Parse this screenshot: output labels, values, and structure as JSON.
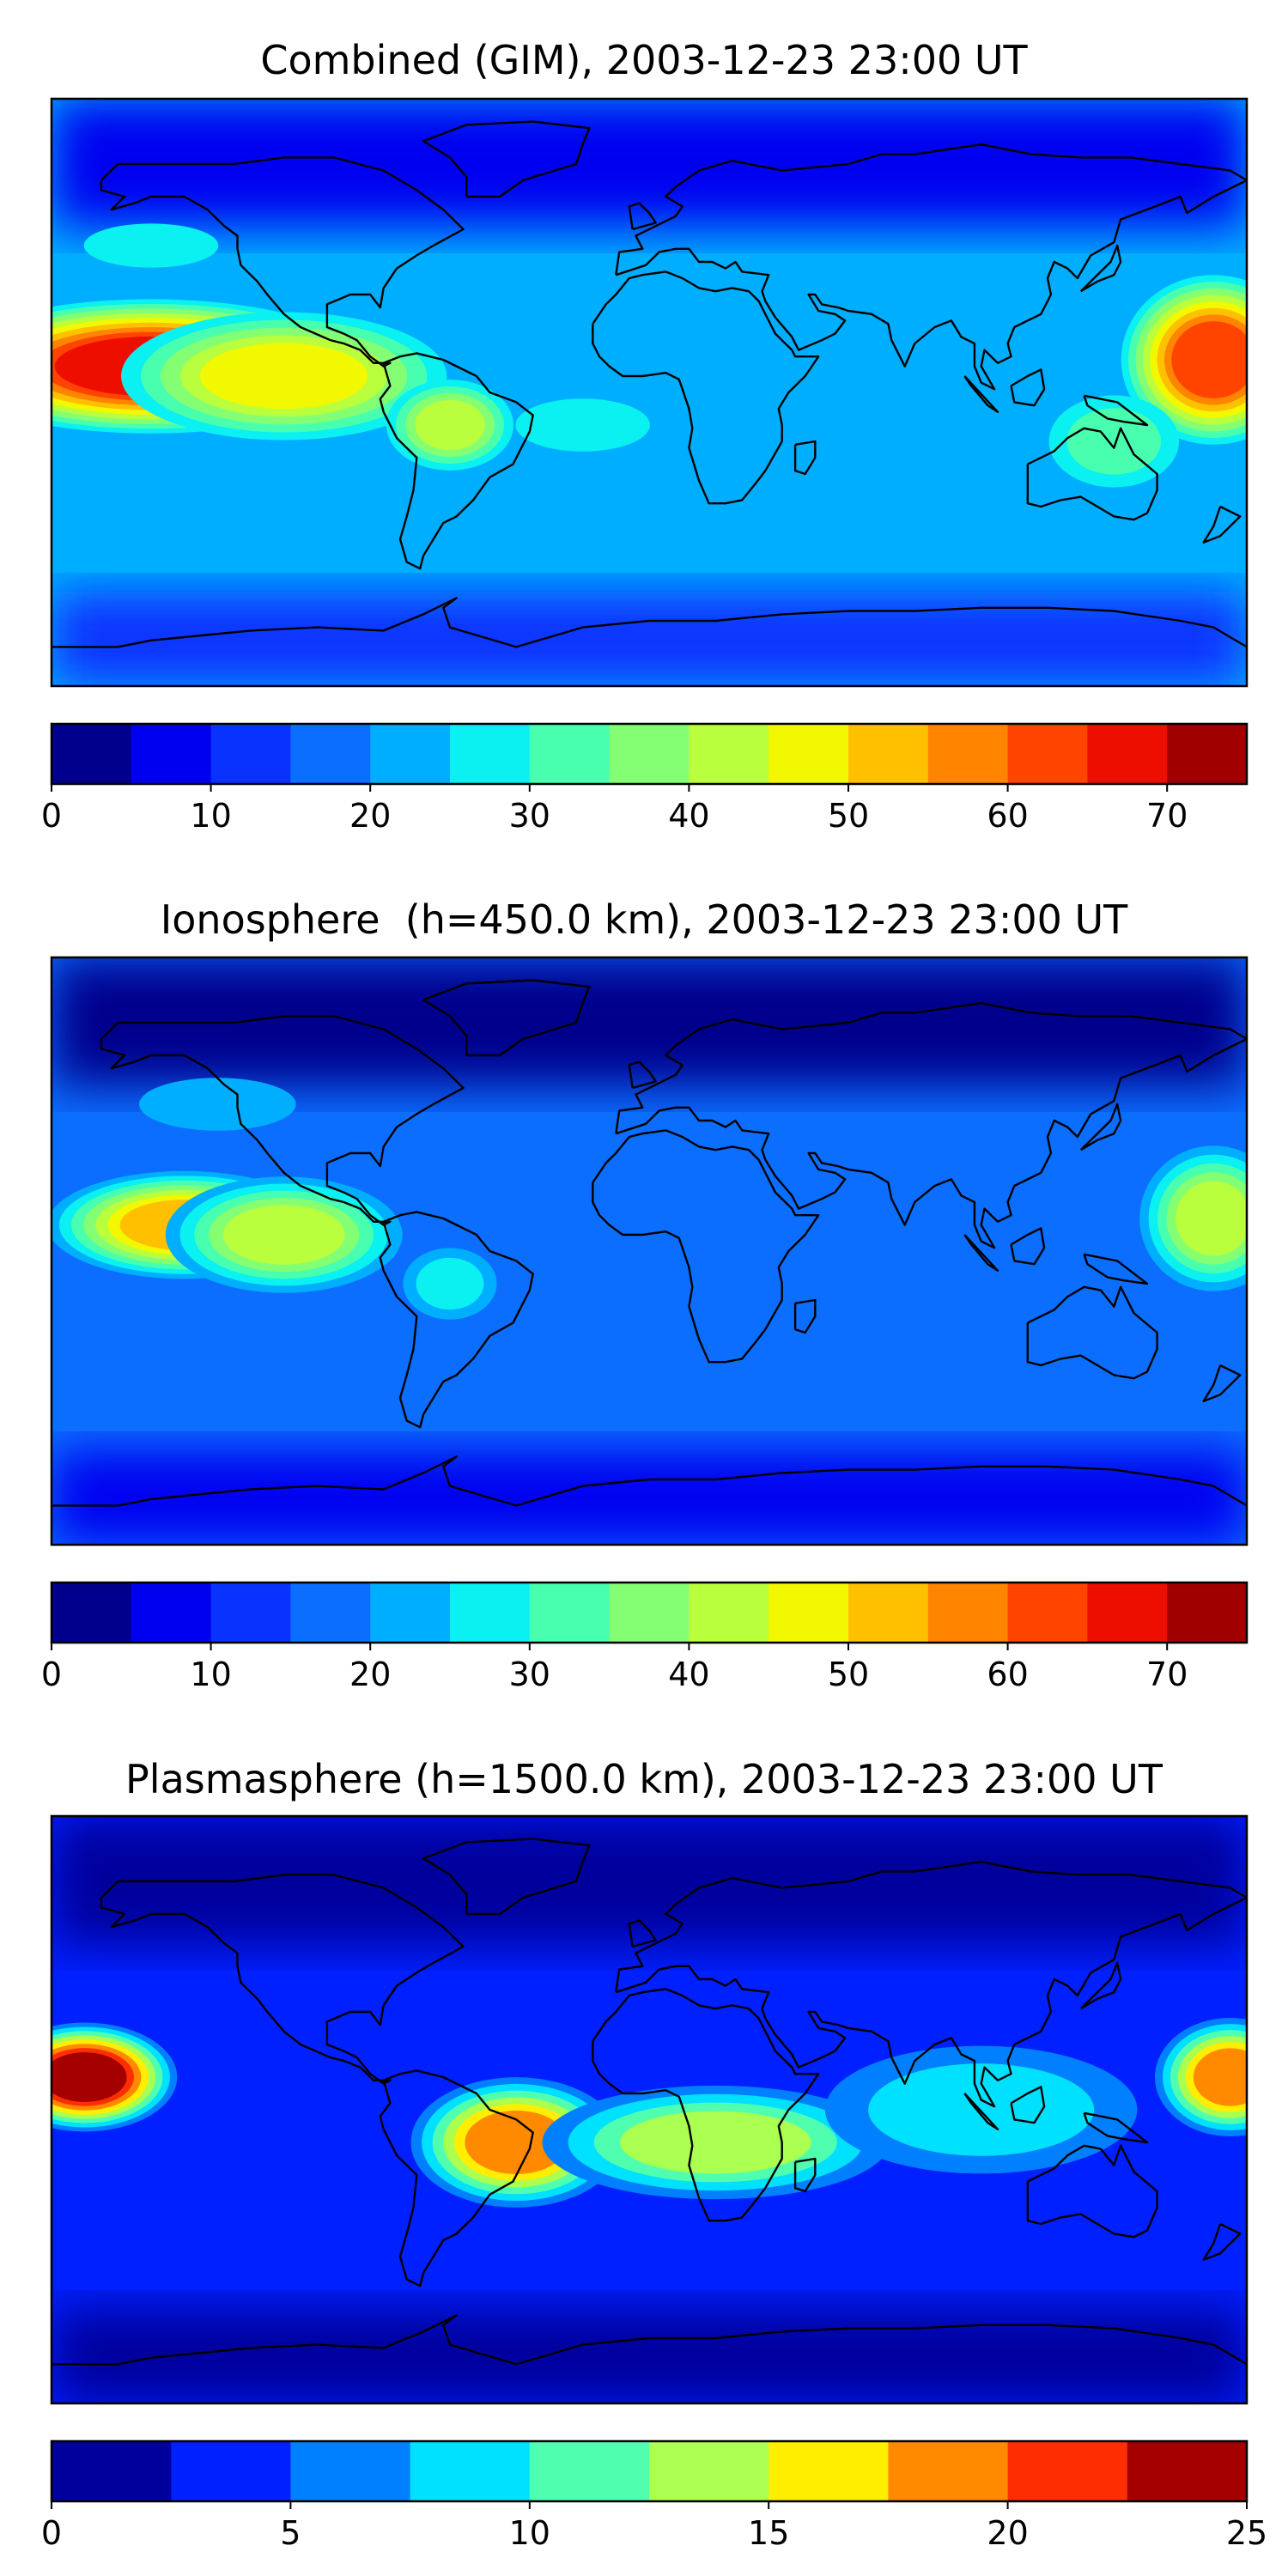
{
  "figure": {
    "panels": [
      {
        "title": "Combined (GIM), 2003-12-23 23:00 UT",
        "colorbar": {
          "min": 0,
          "max": 75,
          "step": 5,
          "ticks": [
            0,
            10,
            20,
            30,
            40,
            50,
            60,
            70
          ],
          "tick_labels": [
            "0",
            "10",
            "20",
            "30",
            "40",
            "50",
            "60",
            "70"
          ],
          "colors": [
            "#00008c",
            "#0000f0",
            "#0a32ff",
            "#0c6eff",
            "#00aeff",
            "#0bf0f0",
            "#48ffb0",
            "#84ff74",
            "#b9ff3d",
            "#f2f800",
            "#ffc000",
            "#ff8400",
            "#ff4400",
            "#ee0e00",
            "#a10000"
          ]
        },
        "blobs": [
          {
            "lon": -150,
            "lat": 8,
            "w": 70,
            "h": 22,
            "level": 0.92
          },
          {
            "lon": -110,
            "lat": 5,
            "w": 55,
            "h": 22,
            "level": 0.65
          },
          {
            "lon": -60,
            "lat": -10,
            "w": 22,
            "h": 16,
            "level": 0.55
          },
          {
            "lon": 170,
            "lat": 10,
            "w": 30,
            "h": 28,
            "level": 0.85
          },
          {
            "lon": 140,
            "lat": -15,
            "w": 25,
            "h": 18,
            "level": 0.42
          },
          {
            "lon": -150,
            "lat": 45,
            "w": 30,
            "h": 10,
            "level": 0.35
          },
          {
            "lon": -20,
            "lat": -10,
            "w": 30,
            "h": 12,
            "level": 0.38
          }
        ],
        "background_level": 0.3
      },
      {
        "title": "Ionosphere  (h=450.0 km), 2003-12-23 23:00 UT",
        "colorbar": {
          "min": 0,
          "max": 75,
          "step": 5,
          "ticks": [
            0,
            10,
            20,
            30,
            40,
            50,
            60,
            70
          ],
          "tick_labels": [
            "0",
            "10",
            "20",
            "30",
            "40",
            "50",
            "60",
            "70"
          ],
          "colors": [
            "#00008c",
            "#0000f0",
            "#0a32ff",
            "#0c6eff",
            "#00aeff",
            "#0bf0f0",
            "#48ffb0",
            "#84ff74",
            "#b9ff3d",
            "#f2f800",
            "#ffc000",
            "#ff8400",
            "#ff4400",
            "#ee0e00",
            "#a10000"
          ]
        },
        "blobs": [
          {
            "lon": -140,
            "lat": 8,
            "w": 45,
            "h": 18,
            "level": 0.7
          },
          {
            "lon": -110,
            "lat": 5,
            "w": 40,
            "h": 20,
            "level": 0.55
          },
          {
            "lon": 170,
            "lat": 10,
            "w": 25,
            "h": 25,
            "level": 0.58
          },
          {
            "lon": -60,
            "lat": -10,
            "w": 18,
            "h": 14,
            "level": 0.35
          },
          {
            "lon": -130,
            "lat": 45,
            "w": 35,
            "h": 12,
            "level": 0.3
          }
        ],
        "background_level": 0.22
      },
      {
        "title": "Plasmasphere (h=1500.0 km), 2003-12-23 23:00 UT",
        "colorbar": {
          "min": 0,
          "max": 25,
          "step": 2.5,
          "ticks": [
            0,
            5,
            10,
            15,
            20,
            25
          ],
          "tick_labels": [
            "0",
            "5",
            "10",
            "15",
            "20",
            "25"
          ],
          "colors": [
            "#00009c",
            "#0020ff",
            "#0080ff",
            "#00e0ff",
            "#4fffaf",
            "#aaff50",
            "#ffee00",
            "#ff8a00",
            "#ff2e00",
            "#a40000"
          ]
        },
        "blobs": [
          {
            "lon": -170,
            "lat": 10,
            "w": 30,
            "h": 18,
            "level": 0.9
          },
          {
            "lon": -40,
            "lat": -10,
            "w": 35,
            "h": 22,
            "level": 0.72
          },
          {
            "lon": 175,
            "lat": 10,
            "w": 25,
            "h": 20,
            "level": 0.78
          },
          {
            "lon": 20,
            "lat": -10,
            "w": 60,
            "h": 20,
            "level": 0.5
          },
          {
            "lon": 100,
            "lat": 0,
            "w": 60,
            "h": 25,
            "level": 0.38
          }
        ],
        "background_level": 0.18
      }
    ]
  }
}
